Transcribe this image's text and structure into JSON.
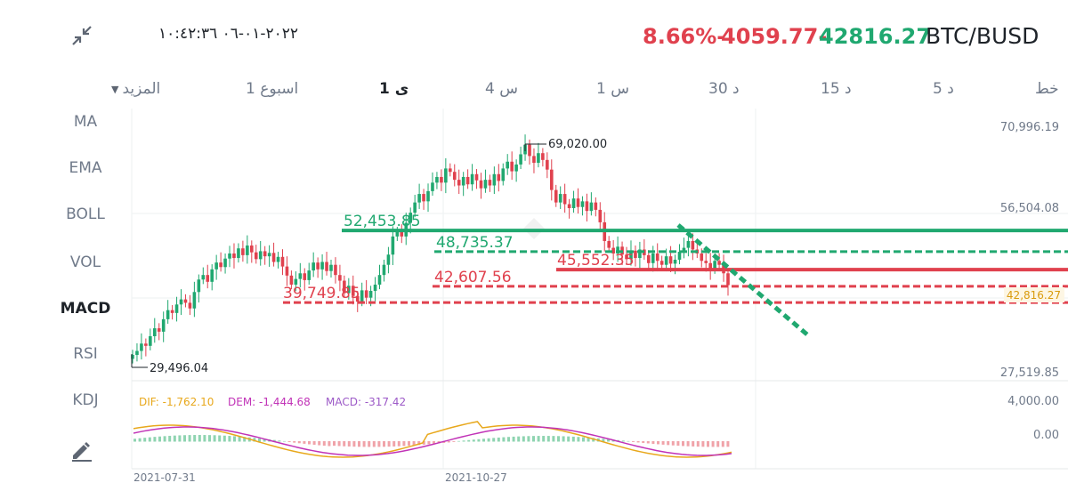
{
  "header": {
    "pair": "BTC/BUSD",
    "price": "42816.27",
    "change": "4059.77-",
    "change_pct": "8.66%-",
    "datetime": "٢٠٢٢-٠١-٠٦ ١٠:٤٢:٣٦",
    "colors": {
      "up": "#20a870",
      "down": "#e0414e"
    }
  },
  "timeframes": [
    {
      "label": "خط"
    },
    {
      "label": "5 د"
    },
    {
      "label": "15 د"
    },
    {
      "label": "30 د"
    },
    {
      "label": "1 س"
    },
    {
      "label": "4 س"
    },
    {
      "label": "1 ى",
      "active": true
    },
    {
      "label": "1 اسبوع"
    },
    {
      "label": "المزيد",
      "dropdown": true
    }
  ],
  "indicators": [
    {
      "label": "MA"
    },
    {
      "label": "EMA"
    },
    {
      "label": "BOLL"
    },
    {
      "label": "VOL"
    },
    {
      "label": "MACD",
      "active": true
    },
    {
      "label": "RSI"
    },
    {
      "label": "KDJ"
    }
  ],
  "icons": {
    "collapse": "collapse-arrows-icon",
    "edit": "pencil-icon",
    "dropdown": "caret-down-icon"
  },
  "chart_data": {
    "type": "candlestick",
    "price_axis_ticks": [
      "70,996.19",
      "56,504.08",
      "27,519.85"
    ],
    "ylim": [
      27519.85,
      70996.19
    ],
    "last_price_label": "42,816.27",
    "x_tick_labels": [
      "2021-07-31",
      "2021-10-27"
    ],
    "annotations": {
      "high": "69,020.00",
      "low": "29,496.04"
    },
    "levels": [
      {
        "label": "52,453.85",
        "value": 52453.85,
        "color": "#20a870",
        "style": "solid"
      },
      {
        "label": "48,735.37",
        "value": 48735.37,
        "color": "#20a870",
        "style": "dashed"
      },
      {
        "label": "45,552.35",
        "value": 45552.35,
        "color": "#e0414e",
        "style": "solid"
      },
      {
        "label": "42,607.56",
        "value": 42607.56,
        "color": "#e0414e",
        "style": "dashed"
      },
      {
        "label": "39,749.85",
        "value": 39749.85,
        "color": "#e0414e",
        "style": "dashed"
      }
    ],
    "trendline": {
      "color": "#20a870",
      "style": "dashed"
    },
    "closes": [
      30500,
      31200,
      32500,
      32100,
      33800,
      35200,
      34600,
      36800,
      38400,
      37900,
      39400,
      40300,
      39700,
      38700,
      41600,
      43800,
      44600,
      43400,
      45600,
      46800,
      46000,
      47500,
      48400,
      47600,
      49300,
      48100,
      49800,
      48600,
      47400,
      48800,
      47900,
      48500,
      46900,
      47800,
      46100,
      44500,
      42900,
      43900,
      44900,
      43700,
      45400,
      46800,
      45600,
      46900,
      45300,
      46400,
      44600,
      43600,
      41400,
      42700,
      40900,
      39900,
      41900,
      40600,
      41800,
      42900,
      44600,
      46400,
      48200,
      51400,
      52200,
      51400,
      53800,
      55600,
      57400,
      58900,
      57600,
      59400,
      60900,
      61900,
      60900,
      63400,
      62800,
      61400,
      60400,
      61900,
      60600,
      62400,
      61300,
      59900,
      61400,
      60400,
      62400,
      61200,
      63400,
      64600,
      62900,
      64100,
      65900,
      67600,
      65600,
      64400,
      66100,
      64900,
      63200,
      59600,
      57400,
      58900,
      57100,
      56400,
      58100,
      56600,
      57600,
      55900,
      57400,
      56100,
      53900,
      50600,
      49400,
      48400,
      49600,
      48200,
      47400,
      48900,
      47600,
      49100,
      48100,
      46700,
      48400,
      47100,
      46400,
      47900,
      46600,
      47300,
      48700,
      49400,
      50600,
      49100,
      48400,
      47100,
      46700,
      45600,
      47100,
      46400,
      44900,
      42816.27
    ],
    "macd": {
      "dif_label": "DIF: -1,762.10",
      "dem_label": "DEM: -1,444.68",
      "macd_label": "MACD: -317.42",
      "axis_ticks": [
        "4,000.00",
        "0.00"
      ],
      "colors": {
        "dif": "#e8a81c",
        "dem": "#c133b7",
        "hist_up": "#8fd4b1",
        "hist_down": "#f0a3a9"
      }
    }
  }
}
